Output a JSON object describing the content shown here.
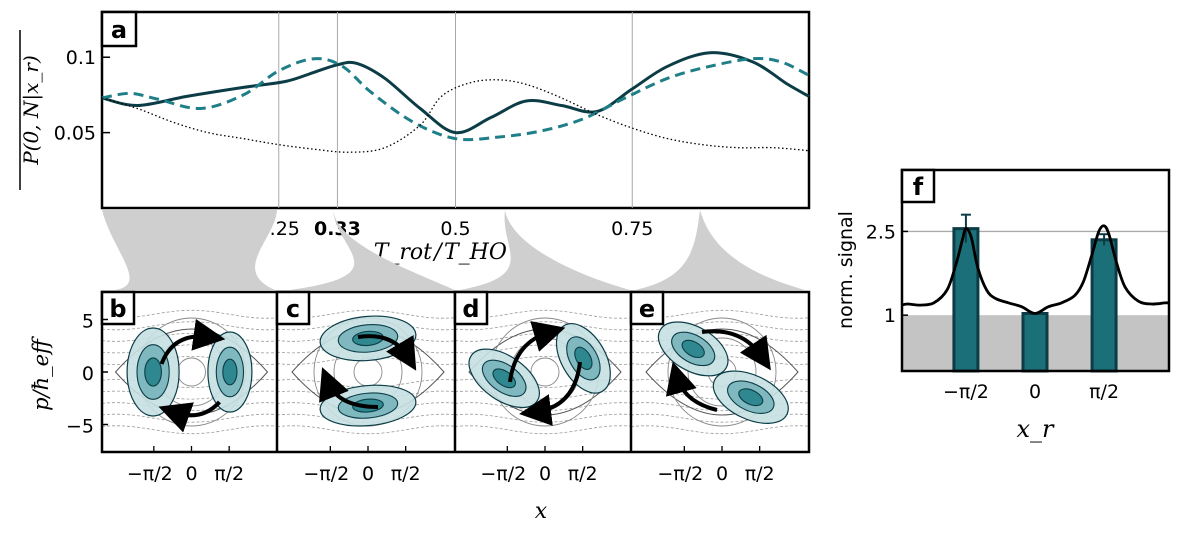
{
  "chart_data": [
    {
      "panel": "a",
      "type": "line",
      "xlabel": "T_rot / T_HO",
      "ylabel": "P(0, N | x_r)",
      "xlim": [
        0.0,
        1.0
      ],
      "ylim": [
        0.0,
        0.13
      ],
      "xticks": [
        {
          "value": 0.25,
          "label": "0.25",
          "bold": false
        },
        {
          "value": 0.333,
          "label": "0.33",
          "bold": true
        },
        {
          "value": 0.5,
          "label": "0.5",
          "bold": false
        },
        {
          "value": 0.75,
          "label": "0.75",
          "bold": false
        }
      ],
      "yticks": [
        {
          "value": 0.1,
          "label": "0.1"
        },
        {
          "value": 0.05,
          "label": "0.05"
        }
      ],
      "vertical_gridlines": [
        0.25,
        0.333,
        0.5,
        0.75
      ],
      "series": [
        {
          "name": "solid",
          "style": "solid",
          "color": "#0c3d46",
          "x": [
            0,
            0.05,
            0.12,
            0.2,
            0.26,
            0.3,
            0.333,
            0.36,
            0.4,
            0.45,
            0.5,
            0.55,
            0.6,
            0.65,
            0.7,
            0.75,
            0.8,
            0.86,
            0.92,
            0.97,
            1.0
          ],
          "y": [
            0.073,
            0.068,
            0.074,
            0.08,
            0.084,
            0.09,
            0.095,
            0.096,
            0.086,
            0.066,
            0.05,
            0.06,
            0.071,
            0.068,
            0.064,
            0.079,
            0.094,
            0.103,
            0.097,
            0.082,
            0.074
          ]
        },
        {
          "name": "dashed",
          "style": "dashed",
          "color": "#1e7f88",
          "x": [
            0,
            0.04,
            0.08,
            0.14,
            0.2,
            0.25,
            0.3,
            0.34,
            0.38,
            0.44,
            0.5,
            0.56,
            0.62,
            0.68,
            0.74,
            0.8,
            0.86,
            0.92,
            0.96,
            1.0
          ],
          "y": [
            0.073,
            0.076,
            0.072,
            0.066,
            0.075,
            0.091,
            0.099,
            0.094,
            0.077,
            0.057,
            0.046,
            0.047,
            0.051,
            0.059,
            0.073,
            0.086,
            0.094,
            0.099,
            0.097,
            0.088
          ]
        },
        {
          "name": "dotted",
          "style": "dotted",
          "color": "#000000",
          "x": [
            0,
            0.05,
            0.1,
            0.15,
            0.2,
            0.25,
            0.3,
            0.35,
            0.4,
            0.45,
            0.48,
            0.52,
            0.56,
            0.6,
            0.65,
            0.7,
            0.75,
            0.8,
            0.85,
            0.9,
            0.95,
            1.0
          ],
          "y": [
            0.073,
            0.066,
            0.057,
            0.05,
            0.046,
            0.042,
            0.039,
            0.037,
            0.04,
            0.055,
            0.074,
            0.083,
            0.085,
            0.082,
            0.073,
            0.062,
            0.053,
            0.046,
            0.042,
            0.04,
            0.04,
            0.038
          ]
        }
      ]
    },
    {
      "panel": "b-e",
      "type": "heatmap",
      "description_of_axes": "phase space",
      "xlabel": "x",
      "ylabel": "p/ħ_eff",
      "xticks": [
        "−π/2",
        "0",
        "π/2"
      ],
      "yticks": [
        {
          "value": 5,
          "label": "5"
        },
        {
          "value": 0,
          "label": "0"
        },
        {
          "value": -5,
          "label": "−5"
        }
      ],
      "subpanels": [
        "b",
        "c",
        "d",
        "e"
      ]
    },
    {
      "panel": "f",
      "type": "bar",
      "categories": [
        "−π/2",
        "0",
        "π/2"
      ],
      "values": [
        2.55,
        1.03,
        2.35
      ],
      "errors": [
        0.25,
        0.0,
        0.1
      ],
      "ylabel": "norm. signal",
      "xlabel": "x_r",
      "ylim": [
        0,
        3.6
      ],
      "yticks": [
        {
          "value": 1,
          "label": "1"
        },
        {
          "value": 2.5,
          "label": "2.5"
        }
      ],
      "shaded_below": 1.0,
      "reference_line": 2.5,
      "overlay_curve": {
        "x": [
          -3.2,
          -2.9,
          -2.6,
          -2.3,
          -2.0,
          -1.8,
          -1.65,
          -1.57,
          -1.45,
          -1.3,
          -1.1,
          -0.9,
          -0.6,
          -0.3,
          0,
          0.3,
          0.6,
          0.9,
          1.1,
          1.3,
          1.45,
          1.57,
          1.68,
          1.85,
          2.05,
          2.35,
          2.65,
          2.95,
          3.2
        ],
        "y": [
          1.18,
          1.2,
          1.18,
          1.22,
          1.45,
          1.9,
          2.35,
          2.55,
          2.4,
          1.85,
          1.45,
          1.3,
          1.22,
          1.15,
          1.03,
          1.15,
          1.22,
          1.35,
          1.6,
          2.1,
          2.5,
          2.6,
          2.45,
          1.95,
          1.5,
          1.25,
          1.2,
          1.22,
          1.22
        ]
      }
    }
  ],
  "labels": {
    "a": "a",
    "b": "b",
    "c": "c",
    "d": "d",
    "e": "e",
    "f": "f",
    "ylabel_a": "P(0, N|x_r)",
    "xlabel_a_main": "T_rot",
    "xlabel_a_den": "T_HO",
    "ylabel_be": "p/ħ_eff",
    "xlabel_be": "x",
    "ylabel_f": "norm. signal",
    "xlabel_f": "x_r"
  }
}
